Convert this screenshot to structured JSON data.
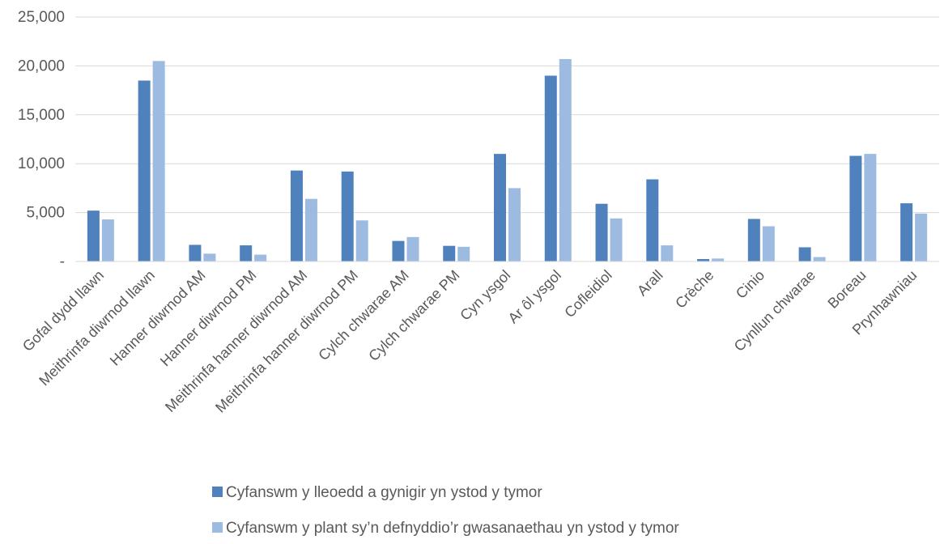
{
  "chart_data": {
    "type": "bar",
    "title": "",
    "xlabel": "",
    "ylabel": "",
    "ylim": [
      0,
      25000
    ],
    "ytick_labels": [
      "-",
      "5,000",
      "10,000",
      "15,000",
      "20,000",
      "25,000"
    ],
    "yticks": [
      0,
      5000,
      10000,
      15000,
      20000,
      25000
    ],
    "grid": true,
    "legend_position": "bottom",
    "categories": [
      "Gofal dydd llawn",
      "Meithrinfa diwrnod llawn",
      "Hanner diwrnod AM",
      "Hanner diwrnod PM",
      "Meithrinfa hanner diwrnod AM",
      "Meithrinfa hanner diwrnod PM",
      "Cylch chwarae AM",
      "Cylch chwarae PM",
      "Cyn ysgol",
      "Ar ôl ysgol",
      "Cofleidiol",
      "Arall",
      "Crèche",
      "Cinio",
      "Cynllun chwarae",
      "Boreau",
      "Prynhawniau"
    ],
    "series": [
      {
        "name": "Cyfanswm y lleoedd a gynigir yn ystod y tymor",
        "color": "#4f81bd",
        "values": [
          5200,
          18500,
          1700,
          1650,
          9300,
          9200,
          2100,
          1600,
          11000,
          19000,
          5900,
          8400,
          250,
          4350,
          1450,
          10800,
          5950
        ]
      },
      {
        "name": "Cyfanswm y plant sy’n defnyddio’r gwasanaethau yn ystod y tymor",
        "color": "#9dbbe1",
        "values": [
          4300,
          20500,
          800,
          700,
          6400,
          4200,
          2500,
          1500,
          7500,
          20700,
          4400,
          1650,
          300,
          3600,
          450,
          11000,
          4900
        ]
      }
    ]
  }
}
